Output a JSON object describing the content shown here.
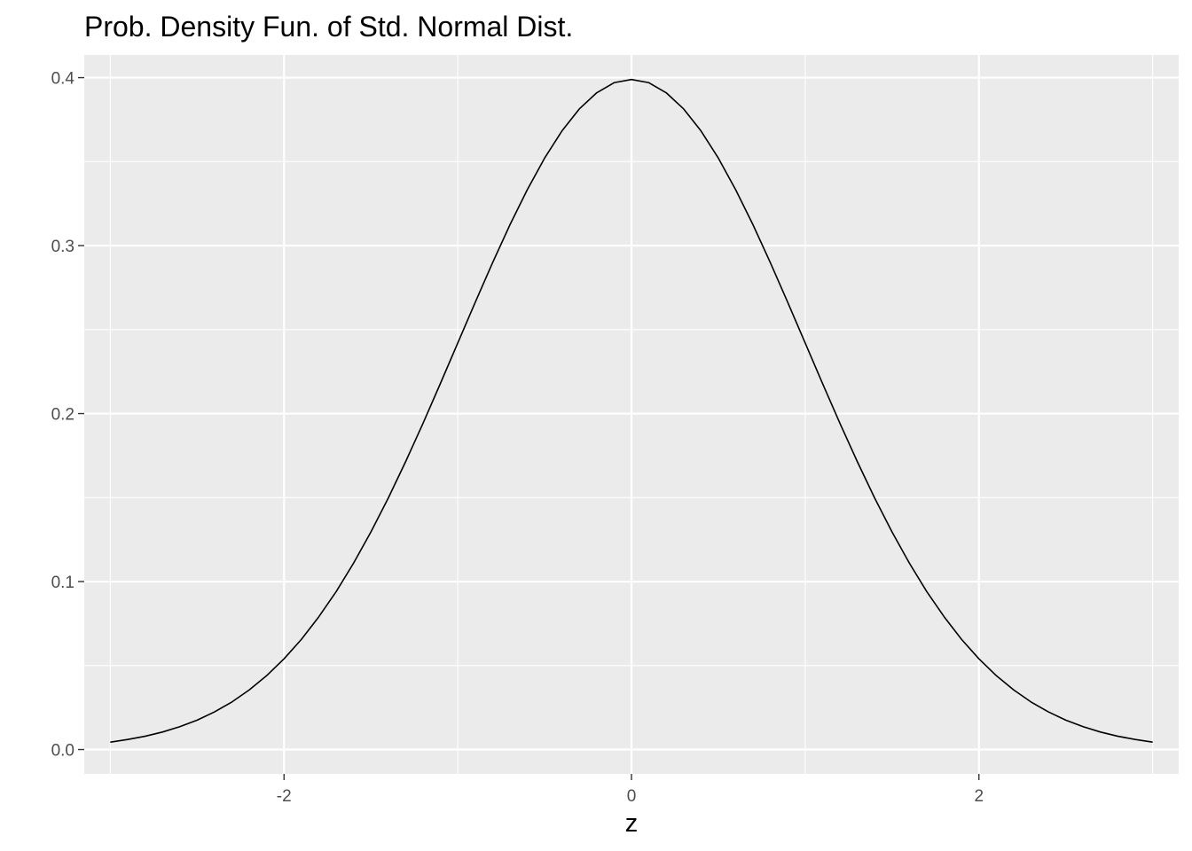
{
  "chart_data": {
    "type": "line",
    "title": "Prob. Density Fun. of Std. Normal Dist.",
    "xlabel": "z",
    "ylabel": "",
    "xlim": [
      -3.15,
      3.15
    ],
    "ylim": [
      -0.0145,
      0.4135
    ],
    "x_ticks": [
      -2,
      0,
      2
    ],
    "x_tick_labels": [
      "-2",
      "0",
      "2"
    ],
    "y_ticks": [
      0.0,
      0.1,
      0.2,
      0.3,
      0.4
    ],
    "y_tick_labels": [
      "0.0",
      "0.1",
      "0.2",
      "0.3",
      "0.4"
    ],
    "grid": true,
    "legend": "none",
    "series": [
      {
        "x": [
          -3.0,
          -2.9,
          -2.8,
          -2.7,
          -2.6,
          -2.5,
          -2.4,
          -2.3,
          -2.2,
          -2.1,
          -2.0,
          -1.9,
          -1.8,
          -1.7,
          -1.6,
          -1.5,
          -1.4,
          -1.3,
          -1.2,
          -1.1,
          -1.0,
          -0.9,
          -0.8,
          -0.7,
          -0.6,
          -0.5,
          -0.4,
          -0.3,
          -0.2,
          -0.1,
          0.0,
          0.1,
          0.2,
          0.3,
          0.4,
          0.5,
          0.6,
          0.7,
          0.8,
          0.9,
          1.0,
          1.1,
          1.2,
          1.3,
          1.4,
          1.5,
          1.6,
          1.7,
          1.8,
          1.9,
          2.0,
          2.1,
          2.2,
          2.3,
          2.4,
          2.5,
          2.6,
          2.7,
          2.8,
          2.9,
          3.0
        ],
        "y": [
          0.0044,
          0.006,
          0.0079,
          0.0104,
          0.0136,
          0.0175,
          0.0224,
          0.0283,
          0.0355,
          0.044,
          0.054,
          0.0656,
          0.079,
          0.094,
          0.1109,
          0.1295,
          0.1497,
          0.1714,
          0.1942,
          0.2179,
          0.242,
          0.2661,
          0.2897,
          0.3123,
          0.3332,
          0.3521,
          0.3683,
          0.3814,
          0.391,
          0.397,
          0.3989,
          0.397,
          0.391,
          0.3814,
          0.3683,
          0.3521,
          0.3332,
          0.3123,
          0.2897,
          0.2661,
          0.242,
          0.2179,
          0.1942,
          0.1714,
          0.1497,
          0.1295,
          0.1109,
          0.094,
          0.079,
          0.0656,
          0.054,
          0.044,
          0.0355,
          0.0283,
          0.0224,
          0.0175,
          0.0136,
          0.0104,
          0.0079,
          0.006,
          0.0044
        ]
      }
    ],
    "colors": {
      "panel_background": "#EBEBEB",
      "grid_line": "#FFFFFF",
      "line": "#000000",
      "tick_label": "#4D4D4D",
      "tick_mark": "#333333"
    }
  }
}
